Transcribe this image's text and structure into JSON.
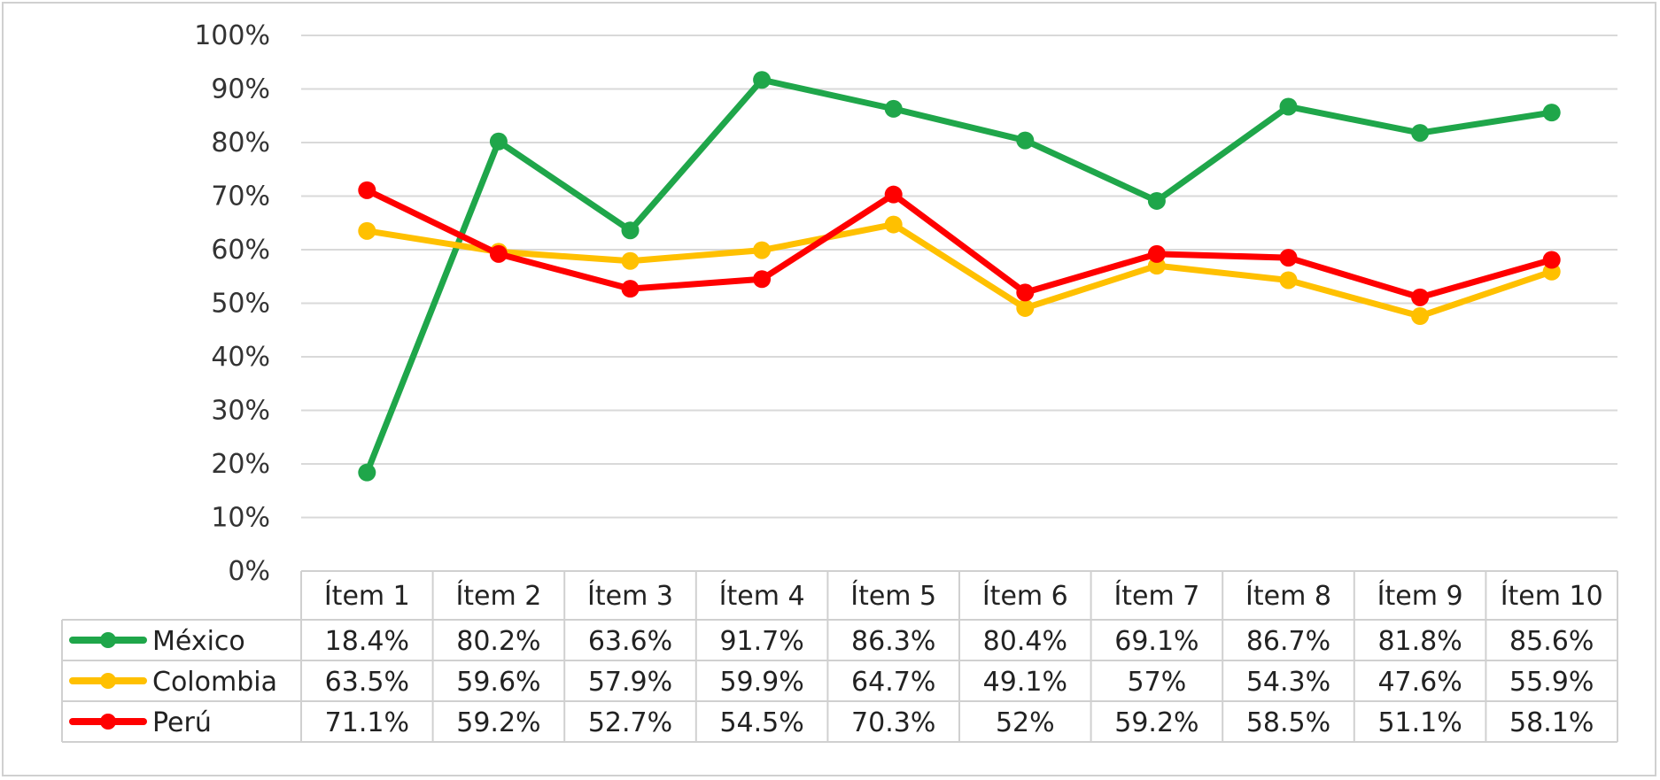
{
  "chart_data": {
    "type": "line",
    "categories": [
      "Ítem 1",
      "Ítem 2",
      "Ítem 3",
      "Ítem 4",
      "Ítem 5",
      "Ítem 6",
      "Ítem 7",
      "Ítem 8",
      "Ítem 9",
      "Ítem 10"
    ],
    "ylim": [
      0,
      100
    ],
    "ytick_labels": [
      "0%",
      "10%",
      "20%",
      "30%",
      "40%",
      "50%",
      "60%",
      "70%",
      "80%",
      "90%",
      "100%"
    ],
    "grid": true,
    "legend": "data-table-below",
    "series": [
      {
        "name": "México",
        "color": "#1fa64a",
        "values": [
          18.4,
          80.2,
          63.6,
          91.7,
          86.3,
          80.4,
          69.1,
          86.7,
          81.8,
          85.6
        ],
        "labels": [
          "18.4%",
          "80.2%",
          "63.6%",
          "91.7%",
          "86.3%",
          "80.4%",
          "69.1%",
          "86.7%",
          "81.8%",
          "85.6%"
        ]
      },
      {
        "name": "Colombia",
        "color": "#ffc000",
        "values": [
          63.5,
          59.6,
          57.9,
          59.9,
          64.7,
          49.1,
          57,
          54.3,
          47.6,
          55.9
        ],
        "labels": [
          "63.5%",
          "59.6%",
          "57.9%",
          "59.9%",
          "64.7%",
          "49.1%",
          "57%",
          "54.3%",
          "47.6%",
          "55.9%"
        ]
      },
      {
        "name": "Perú",
        "color": "#ff0000",
        "values": [
          71.1,
          59.2,
          52.7,
          54.5,
          70.3,
          52,
          59.2,
          58.5,
          51.1,
          58.1
        ],
        "labels": [
          "71.1%",
          "59.2%",
          "52.7%",
          "54.5%",
          "70.3%",
          "52%",
          "59.2%",
          "58.5%",
          "51.1%",
          "58.1%"
        ]
      }
    ]
  }
}
